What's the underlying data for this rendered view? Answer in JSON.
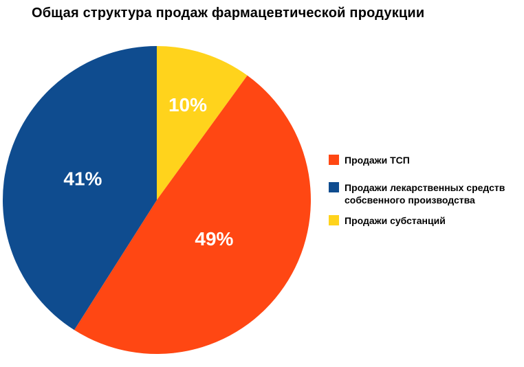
{
  "title": "Общая структура продаж фармацевтической продукции",
  "chart_data": {
    "type": "pie",
    "title": "Общая структура продаж фармацевтической продукции",
    "background": "#FFFFFF",
    "start_angle_deg": 0,
    "direction": "clockwise",
    "legend_position": "right",
    "percent_label_color": "#FFFFFF",
    "slices": [
      {
        "label": "Продажи субстанций",
        "value": 10,
        "percent_label": "10%",
        "color": "#FFD31C",
        "label_radius_frac": 0.65
      },
      {
        "label": "Продажи ТСП",
        "value": 49,
        "percent_label": "49%",
        "color": "#FF4713",
        "label_radius_frac": 0.45
      },
      {
        "label": "Продажи лекарственных средств собсвенного производства",
        "value": 41,
        "percent_label": "41%",
        "color": "#0F4C8F",
        "label_radius_frac": 0.5
      }
    ]
  },
  "legend": {
    "items": [
      {
        "label": "Продажи ТСП",
        "color": "#FF4713"
      },
      {
        "label": "Продажи лекарственных средств собсвенного производства",
        "color": "#0F4C8F"
      },
      {
        "label": "Продажи субстанций",
        "color": "#FFD31C"
      }
    ]
  }
}
